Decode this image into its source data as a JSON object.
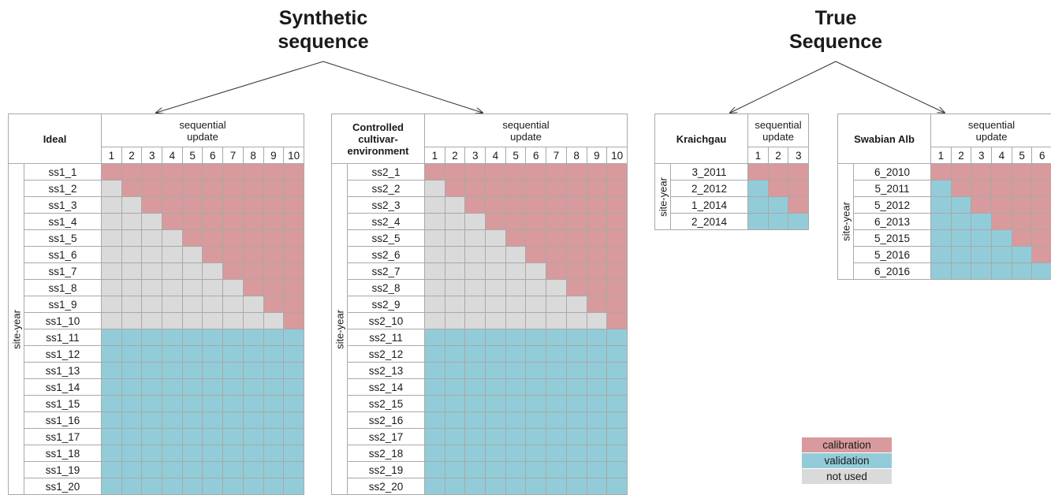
{
  "headings": {
    "synthetic": [
      "Synthetic",
      "sequence"
    ],
    "true": [
      "True",
      "Sequence"
    ]
  },
  "labels": {
    "sequential_update": [
      "sequential",
      "update"
    ],
    "site_year": "site-year"
  },
  "colors": {
    "calibration": "#d89a9c",
    "validation": "#92ccd8",
    "not_used": "#dadada"
  },
  "tables": [
    {
      "id": "ideal",
      "name": [
        "Ideal"
      ],
      "updates": [
        "1",
        "2",
        "3",
        "4",
        "5",
        "6",
        "7",
        "8",
        "9",
        "10"
      ],
      "rows": [
        "ss1_1",
        "ss1_2",
        "ss1_3",
        "ss1_4",
        "ss1_5",
        "ss1_6",
        "ss1_7",
        "ss1_8",
        "ss1_9",
        "ss1_10",
        "ss1_11",
        "ss1_12",
        "ss1_13",
        "ss1_14",
        "ss1_15",
        "ss1_16",
        "ss1_17",
        "ss1_18",
        "ss1_19",
        "ss1_20"
      ],
      "lower_fill": "not_used"
    },
    {
      "id": "controlled",
      "name": [
        "Controlled",
        "cultivar-",
        "environment"
      ],
      "updates": [
        "1",
        "2",
        "3",
        "4",
        "5",
        "6",
        "7",
        "8",
        "9",
        "10"
      ],
      "rows": [
        "ss2_1",
        "ss2_2",
        "ss2_3",
        "ss2_4",
        "ss2_5",
        "ss2_6",
        "ss2_7",
        "ss2_8",
        "ss2_9",
        "ss2_10",
        "ss2_11",
        "ss2_12",
        "ss2_13",
        "ss2_14",
        "ss2_15",
        "ss2_16",
        "ss2_17",
        "ss2_18",
        "ss2_19",
        "ss2_20"
      ],
      "lower_fill": "not_used"
    },
    {
      "id": "kraichgau",
      "name": [
        "Kraichgau"
      ],
      "updates": [
        "1",
        "2",
        "3"
      ],
      "rows": [
        "3_2011",
        "2_2012",
        "1_2014",
        "2_2014"
      ],
      "lower_fill": "validation"
    },
    {
      "id": "swabian",
      "name": [
        "Swabian Alb"
      ],
      "updates": [
        "1",
        "2",
        "3",
        "4",
        "5",
        "6"
      ],
      "rows": [
        "6_2010",
        "5_2011",
        "5_2012",
        "6_2013",
        "5_2015",
        "5_2016",
        "6_2016"
      ],
      "lower_fill": "validation"
    }
  ],
  "legend": [
    "calibration",
    "validation",
    "not used"
  ]
}
